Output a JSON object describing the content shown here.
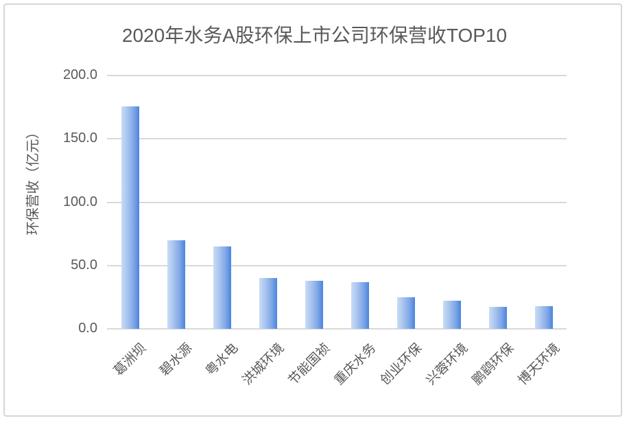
{
  "chart_data": {
    "type": "bar",
    "title": "2020年水务A股环保上市公司环保营收TOP10",
    "ylabel": "环保营收（亿元）",
    "xlabel": "",
    "categories": [
      "葛洲坝",
      "碧水源",
      "粤水电",
      "洪城环境",
      "节能国祯",
      "重庆水务",
      "创业环保",
      "兴蓉环境",
      "鹏鹞环保",
      "博天环境"
    ],
    "values": [
      175.7,
      70.0,
      65.3,
      40.0,
      38.2,
      37.0,
      24.8,
      22.1,
      17.6,
      18.1
    ],
    "ylim": [
      0,
      200
    ],
    "ytick_interval": 50,
    "ytick_labels": [
      "0.0",
      "50.0",
      "100.0",
      "150.0",
      "200.0"
    ],
    "grid": true,
    "legend": false,
    "colors": {
      "bar_gradient_start": "#c9dcf5",
      "bar_gradient_end": "#4a84de",
      "gridline": "#d9d9d9",
      "text": "#595959",
      "frame_border": "#d6d6d6",
      "background": "#ffffff"
    }
  }
}
